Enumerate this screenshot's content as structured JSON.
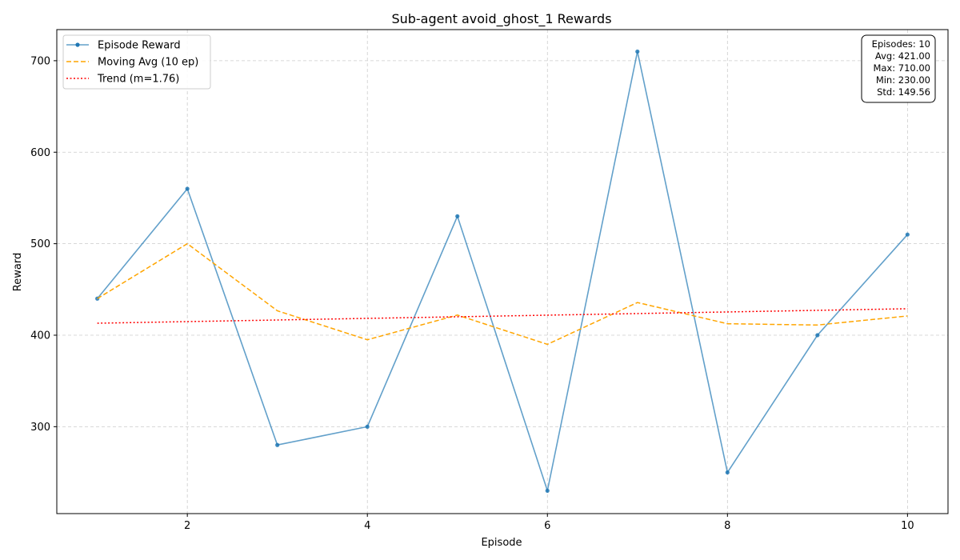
{
  "chart_data": {
    "type": "line",
    "title": "Sub-agent avoid_ghost_1 Rewards",
    "xlabel": "Episode",
    "ylabel": "Reward",
    "xlim": [
      0.55,
      10.45
    ],
    "ylim": [
      205,
      734
    ],
    "x_ticks": [
      2,
      4,
      6,
      8,
      10
    ],
    "y_ticks": [
      300,
      400,
      500,
      600,
      700
    ],
    "grid": true,
    "legend_position": "upper-left",
    "x": [
      1,
      2,
      3,
      4,
      5,
      6,
      7,
      8,
      9,
      10
    ],
    "series": [
      {
        "name": "Episode Reward",
        "style": "solid-with-markers",
        "color": "#1f77b4",
        "values": [
          440,
          560,
          280,
          300,
          530,
          230,
          710,
          250,
          400,
          510
        ]
      },
      {
        "name": "Moving Avg (10 ep)",
        "style": "dashed",
        "color": "#ffa500",
        "values": [
          440,
          500,
          426.67,
          395,
          422,
          390,
          435.71,
          412.5,
          411.11,
          421
        ]
      },
      {
        "name": "Trend (m=1.76)",
        "style": "dotted",
        "color": "#ff0000",
        "values": [
          413.09,
          414.85,
          416.61,
          418.38,
          420.12,
          421.88,
          423.64,
          425.4,
          427.16,
          428.92
        ]
      }
    ],
    "stats_box": {
      "position": "upper-right",
      "lines": [
        "Episodes: 10",
        "Avg: 421.00",
        "Max: 710.00",
        "Min: 230.00",
        "Std: 149.56"
      ]
    }
  }
}
